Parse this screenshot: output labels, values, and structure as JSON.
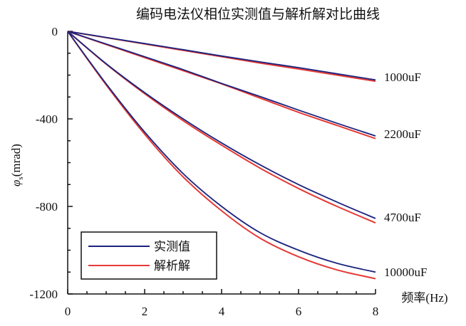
{
  "chart_data": {
    "type": "line",
    "title": "编码电法仪相位实测值与解析解对比曲线",
    "xlabel": "频率(Hz)",
    "ylabel_main": "φ",
    "ylabel_sub": "s",
    "ylabel_unit": "(mrad)",
    "xlim": [
      0,
      8
    ],
    "ylim": [
      -1200,
      0
    ],
    "x_ticks": [
      "0",
      "2",
      "4",
      "6",
      "8"
    ],
    "y_ticks": [
      "0",
      "-400",
      "-800",
      "-1200"
    ],
    "x_tick_values": [
      0,
      2,
      4,
      6,
      8
    ],
    "y_tick_values": [
      0,
      -400,
      -800,
      -1200
    ],
    "legend_position": "bottom-left",
    "series_colors": {
      "measured": "#1a237e",
      "analytic": "#e53935"
    },
    "legend": [
      {
        "name": "实测值",
        "color": "#1a237e"
      },
      {
        "name": "解析解",
        "color": "#e53935"
      }
    ],
    "x": [
      0,
      1,
      2,
      3,
      4,
      5,
      6,
      7,
      8
    ],
    "curves": [
      {
        "label": "1000uF",
        "measured": [
          0,
          -28,
          -56,
          -84,
          -113,
          -140,
          -166,
          -194,
          -222
        ],
        "analytic": [
          0,
          -29,
          -58,
          -87,
          -116,
          -145,
          -172,
          -200,
          -228
        ]
      },
      {
        "label": "2200uF",
        "measured": [
          0,
          -58,
          -116,
          -175,
          -238,
          -298,
          -360,
          -420,
          -478
        ],
        "analytic": [
          0,
          -60,
          -120,
          -180,
          -240,
          -305,
          -370,
          -430,
          -490
        ]
      },
      {
        "label": "4700uF",
        "measured": [
          0,
          -148,
          -280,
          -400,
          -510,
          -610,
          -700,
          -780,
          -855
        ],
        "analytic": [
          0,
          -150,
          -285,
          -408,
          -520,
          -625,
          -718,
          -800,
          -875
        ]
      },
      {
        "label": "10000uF",
        "measured": [
          0,
          -240,
          -460,
          -650,
          -800,
          -920,
          -1000,
          -1060,
          -1100
        ],
        "analytic": [
          0,
          -245,
          -470,
          -665,
          -820,
          -945,
          -1030,
          -1090,
          -1130
        ]
      }
    ]
  }
}
